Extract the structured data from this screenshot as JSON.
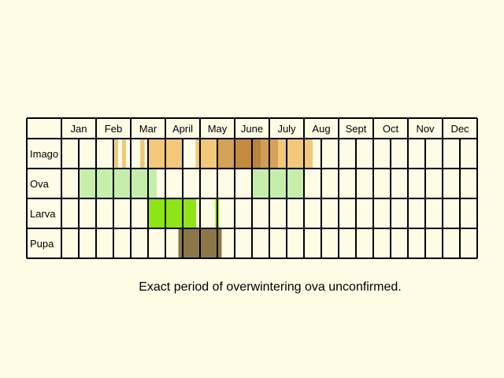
{
  "chart_data": {
    "type": "table",
    "months": [
      "Jan",
      "Feb",
      "Mar",
      "April",
      "May",
      "June",
      "July",
      "Aug",
      "Sept",
      "Oct",
      "Nov",
      "Dec"
    ],
    "stages": [
      {
        "name": "Imago",
        "fills": [
          {
            "from": 3.08,
            "to": 3.27,
            "color": "#f0c878"
          },
          {
            "from": 3.5,
            "to": 3.72,
            "color": "#f0c878"
          },
          {
            "from": 4.55,
            "to": 4.8,
            "color": "#f0c878"
          },
          {
            "from": 5.0,
            "to": 6.0,
            "color": "#f3c87a"
          },
          {
            "from": 6.0,
            "to": 6.8,
            "color": "#f3c87a"
          },
          {
            "from": 6.8,
            "to": 7.0,
            "color": "#f0c878"
          },
          {
            "from": 7.75,
            "to": 8.0,
            "color": "#f0c878"
          },
          {
            "from": 8.0,
            "to": 9.0,
            "color": "#f3c87a"
          },
          {
            "from": 9.0,
            "to": 10.0,
            "color": "#d3a257"
          },
          {
            "from": 10.0,
            "to": 11.0,
            "color": "#c48a3e"
          },
          {
            "from": 11.0,
            "to": 11.5,
            "color": "#b9853e"
          },
          {
            "from": 11.5,
            "to": 12.0,
            "color": "#cf9d55"
          },
          {
            "from": 12.0,
            "to": 12.5,
            "color": "#d6a25a"
          },
          {
            "from": 12.5,
            "to": 13.0,
            "color": "#f3c87a"
          },
          {
            "from": 13.0,
            "to": 14.0,
            "color": "#f3c87a"
          },
          {
            "from": 14.0,
            "to": 14.5,
            "color": "#f0c878"
          }
        ]
      },
      {
        "name": "Ova",
        "fills": [
          {
            "from": 1.0,
            "to": 5.0,
            "color": "#c6eeaa"
          },
          {
            "from": 5.0,
            "to": 5.5,
            "color": "#c6eeaa"
          },
          {
            "from": 11.0,
            "to": 14.0,
            "color": "#c6eeaa"
          }
        ]
      },
      {
        "name": "Larva",
        "fills": [
          {
            "from": 5.0,
            "to": 7.5,
            "color": "#8ee416"
          },
          {
            "from": 7.5,
            "to": 7.78,
            "color": "#8ee416"
          },
          {
            "from": 8.88,
            "to": 9.08,
            "color": "#8ee416"
          }
        ]
      },
      {
        "name": "Pupa",
        "fills": [
          {
            "from": 6.75,
            "to": 9.0,
            "color": "#8c7748"
          },
          {
            "from": 9.0,
            "to": 9.25,
            "color": "#8c7748"
          }
        ]
      }
    ],
    "note": "Exact period of overwintering ova unconfirmed."
  }
}
